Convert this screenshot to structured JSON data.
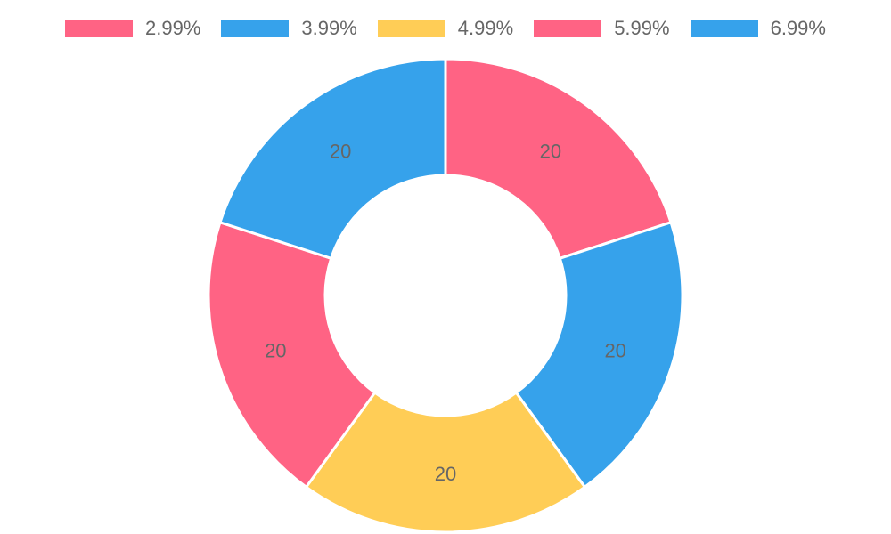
{
  "chart_data": {
    "type": "pie",
    "donut": true,
    "legend_position": "top",
    "categories": [
      "2.99%",
      "3.99%",
      "4.99%",
      "5.99%",
      "6.99%"
    ],
    "values": [
      20,
      20,
      20,
      20,
      20
    ],
    "colors": [
      "#ff6384",
      "#36a2eb",
      "#ffcd56",
      "#ff6384",
      "#36a2eb"
    ],
    "labels": [
      "20",
      "20",
      "20",
      "20",
      "20"
    ]
  }
}
